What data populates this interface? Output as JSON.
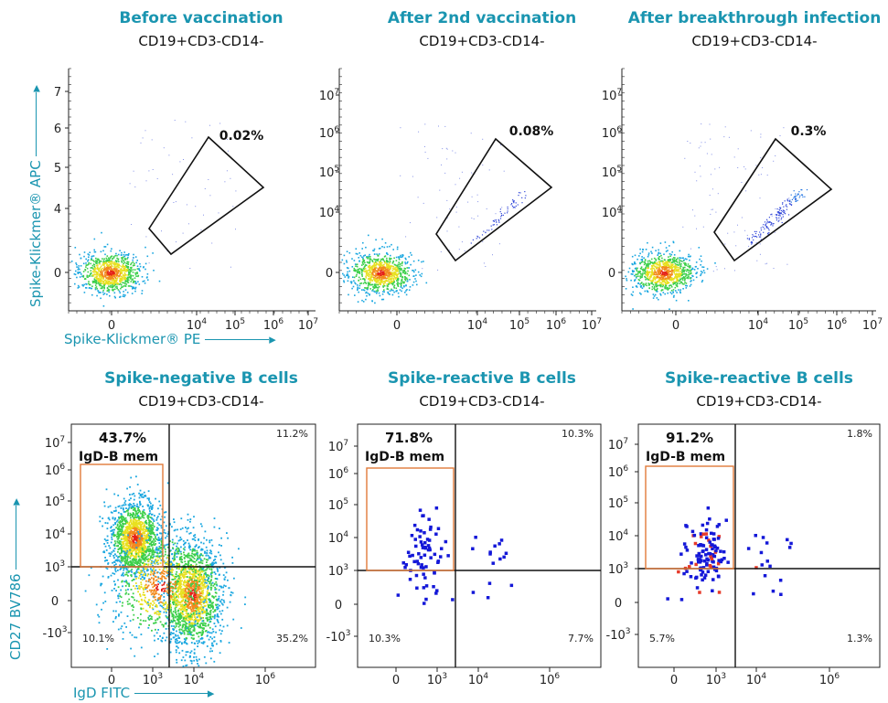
{
  "chart_data": [
    {
      "type": "scatter",
      "title": "Before vaccination",
      "subtitle": "CD19+CD3-CD14-",
      "xlabel": "Spike-Klickmer® PE",
      "ylabel": "Spike-Klickmer® APC",
      "x_ticks": [
        "0",
        "10^4",
        "10^5",
        "10^6",
        "10^7"
      ],
      "y_ticks": [
        "0",
        "4",
        "5",
        "6",
        "7"
      ],
      "gate_label": "0.02%",
      "scale": "biexponential"
    },
    {
      "type": "scatter",
      "title": "After 2nd vaccination",
      "subtitle": "CD19+CD3-CD14-",
      "x_ticks": [
        "0",
        "10^4",
        "10^5",
        "10^6",
        "10^7"
      ],
      "y_ticks": [
        "0",
        "10^4",
        "10^5",
        "10^6",
        "10^7"
      ],
      "gate_label": "0.08%",
      "scale": "biexponential"
    },
    {
      "type": "scatter",
      "title": "After breakthrough infection",
      "subtitle": "CD19+CD3-CD14-",
      "x_ticks": [
        "0",
        "10^4",
        "10^5",
        "10^6",
        "10^7"
      ],
      "y_ticks": [
        "0",
        "10^4",
        "10^5",
        "10^6",
        "10^7"
      ],
      "gate_label": "0.3%",
      "scale": "biexponential"
    },
    {
      "type": "scatter",
      "title": "Spike-negative B cells",
      "subtitle": "CD19+CD3-CD14-",
      "xlabel": "IgD FITC",
      "ylabel": "CD27 BV786",
      "x_ticks": [
        "0",
        "10^3",
        "10^4",
        "10^6"
      ],
      "y_ticks": [
        "-10^3",
        "0",
        "10^3",
        "10^4",
        "10^5",
        "10^6",
        "10^7"
      ],
      "gate_label": "43.7%",
      "gate_name": "IgD-B mem",
      "quadrants": {
        "top_right": "11.2%",
        "bottom_left": "10.1%",
        "bottom_right": "35.2%"
      },
      "scale": "biexponential"
    },
    {
      "type": "scatter",
      "title": "Spike-reactive B cells",
      "subtitle": "CD19+CD3-CD14-",
      "x_ticks": [
        "0",
        "10^3",
        "10^4",
        "10^6"
      ],
      "y_ticks": [
        "-10^3",
        "0",
        "10^3",
        "10^4",
        "10^5",
        "10^6",
        "10^7"
      ],
      "gate_label": "71.8%",
      "gate_name": "IgD-B mem",
      "quadrants": {
        "top_right": "10.3%",
        "bottom_left": "10.3%",
        "bottom_right": "7.7%"
      },
      "scale": "biexponential"
    },
    {
      "type": "scatter",
      "title": "Spike-reactive B cells",
      "subtitle": "CD19+CD3-CD14-",
      "x_ticks": [
        "0",
        "10^3",
        "10^4",
        "10^6"
      ],
      "y_ticks": [
        "-10^3",
        "0",
        "10^3",
        "10^4",
        "10^5",
        "10^6",
        "10^7"
      ],
      "gate_label": "91.2%",
      "gate_name": "IgD-B mem",
      "quadrants": {
        "top_right": "1.8%",
        "bottom_left": "5.7%",
        "bottom_right": "1.3%"
      },
      "scale": "biexponential"
    }
  ]
}
